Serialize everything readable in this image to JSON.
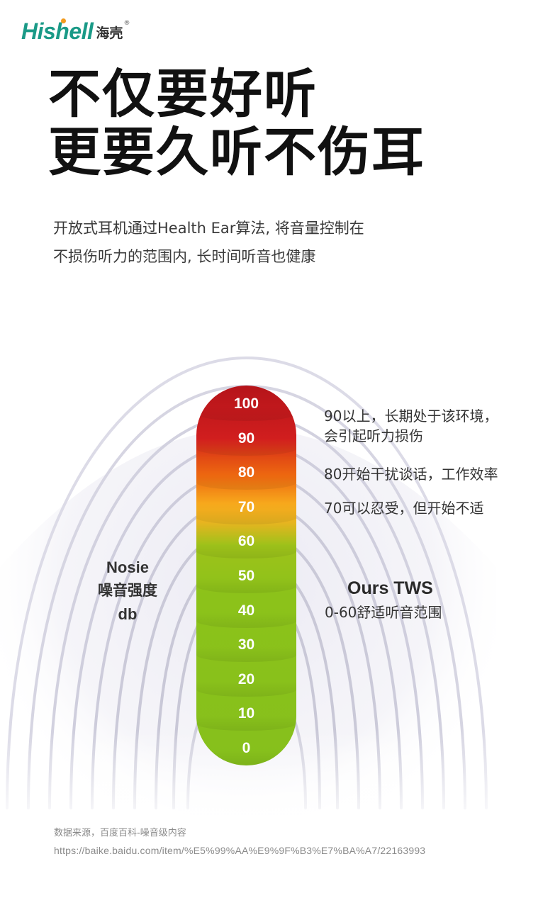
{
  "logo": {
    "brand": "Hishell",
    "brand_cn": "海壳",
    "reg_mark": "®",
    "color": "#1a9a87",
    "dot_color": "#f29a1c"
  },
  "headline": {
    "line1": "不仅要好听",
    "line2": "更要久听不伤耳"
  },
  "description": {
    "line1": "开放式耳机通过Health Ear算法, 将音量控制在",
    "line2": "不损伤听力的范围内, 长时间听音也健康"
  },
  "meter": {
    "ticks": [
      "100",
      "90",
      "80",
      "70",
      "60",
      "50",
      "40",
      "30",
      "20",
      "10",
      "0"
    ],
    "colors": {
      "red": "#c8191c",
      "orange": "#ee6a10",
      "yellow": "#f7a81c",
      "green": "#86c01c"
    }
  },
  "left_label": {
    "line1": "Nosie",
    "line2": "噪音强度",
    "line3": "db"
  },
  "notes": {
    "n90_line1": "90以上，长期处于该环境，",
    "n90_line2": "会引起听力损伤",
    "n80": "80开始干扰谈话，工作效率",
    "n70": "70可以忍受，但开始不适"
  },
  "ours": {
    "title": "Ours TWS",
    "subtitle": "0-60舒适听音范围"
  },
  "source": {
    "label": "数据来源，百度百科-噪音级内容",
    "url": "https://baike.baidu.com/item/%E5%99%AA%E9%9F%B3%E7%BA%A7/22163993"
  }
}
